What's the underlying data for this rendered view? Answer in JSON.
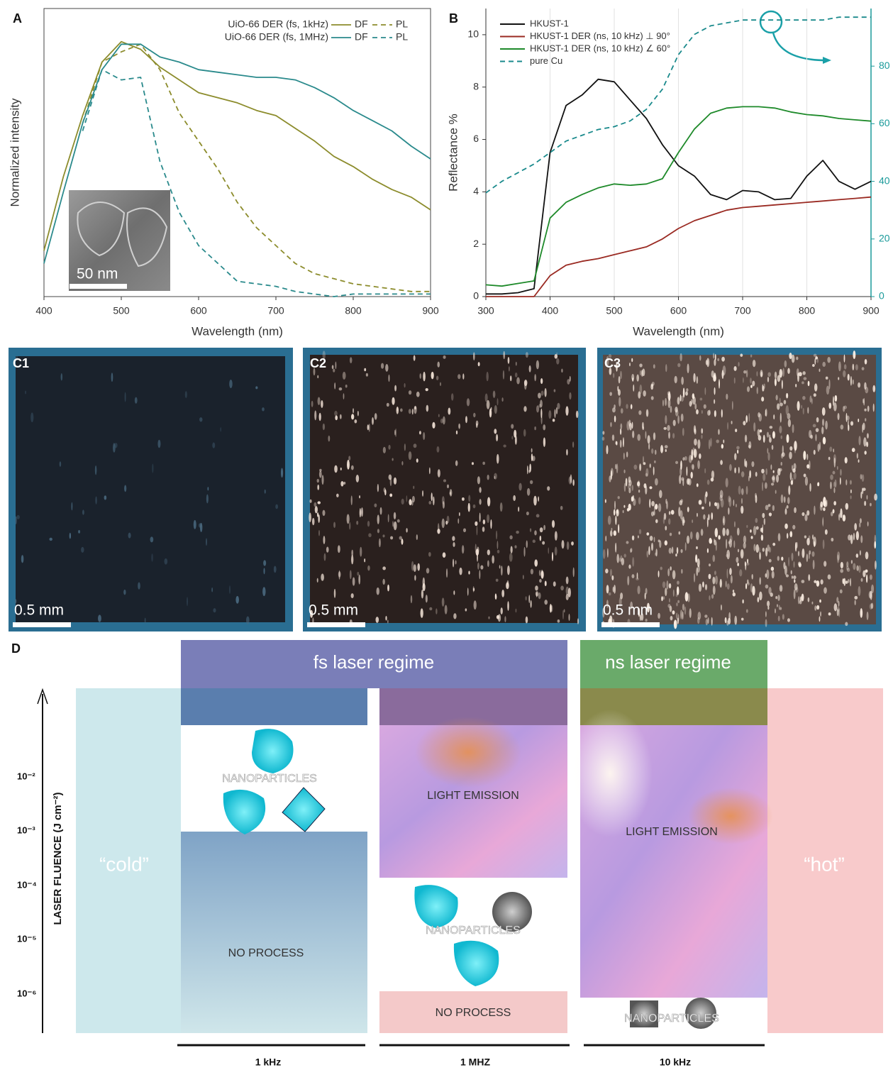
{
  "chart_data": [
    {
      "type": "line",
      "panel": "A",
      "xlabel": "Wavelength (nm)",
      "ylabel": "Normalized intensity",
      "x": [
        400,
        425,
        450,
        475,
        500,
        525,
        550,
        575,
        600,
        625,
        650,
        675,
        700,
        725,
        750,
        775,
        800,
        825,
        850,
        875,
        900
      ],
      "xlim": [
        400,
        900
      ],
      "xticks": [
        400,
        500,
        600,
        700,
        800,
        900
      ],
      "ylim": [
        0,
        1.13
      ],
      "series_groups": [
        {
          "name": "UiO-66 DER (fs, 1kHz)",
          "series": [
            {
              "name": "DF",
              "color": "#8c8c2c",
              "dashed": false,
              "values": [
                0.18,
                0.47,
                0.71,
                0.92,
                1.0,
                0.97,
                0.9,
                0.85,
                0.8,
                0.78,
                0.76,
                0.73,
                0.71,
                0.66,
                0.61,
                0.55,
                0.51,
                0.46,
                0.42,
                0.39,
                0.34
              ]
            },
            {
              "name": "PL",
              "color": "#8c8c2c",
              "dashed": true,
              "values": [
                null,
                null,
                0.68,
                0.92,
                0.96,
                0.99,
                0.89,
                0.72,
                0.61,
                0.5,
                0.37,
                0.27,
                0.2,
                0.13,
                0.09,
                0.07,
                0.05,
                0.04,
                0.03,
                0.02,
                0.02
              ]
            }
          ]
        },
        {
          "name": "UiO-66 DER (fs, 1MHz)",
          "series": [
            {
              "name": "DF",
              "color": "#2a8a8c",
              "dashed": false,
              "values": [
                0.13,
                0.41,
                0.68,
                0.89,
                0.99,
                0.99,
                0.94,
                0.92,
                0.89,
                0.88,
                0.87,
                0.86,
                0.86,
                0.85,
                0.82,
                0.78,
                0.73,
                0.69,
                0.65,
                0.59,
                0.54
              ]
            },
            {
              "name": "PL",
              "color": "#2a8a8c",
              "dashed": true,
              "values": [
                null,
                null,
                0.65,
                0.89,
                0.85,
                0.86,
                0.53,
                0.33,
                0.2,
                0.13,
                0.06,
                0.05,
                0.04,
                0.02,
                0.01,
                0,
                0.01,
                0.01,
                0.01,
                0.01,
                0.01
              ]
            }
          ]
        }
      ],
      "inset": {
        "scale_bar": "50 nm"
      }
    },
    {
      "type": "line",
      "panel": "B",
      "xlabel": "Wavelength (nm)",
      "ylabel": "Reflectance %",
      "x": [
        300,
        325,
        350,
        375,
        400,
        425,
        450,
        475,
        500,
        525,
        550,
        575,
        600,
        625,
        650,
        675,
        700,
        725,
        750,
        775,
        800,
        825,
        850,
        875,
        900
      ],
      "xlim": [
        300,
        900
      ],
      "xticks": [
        300,
        400,
        500,
        600,
        700,
        800,
        900
      ],
      "grid": true,
      "ylim": [
        0,
        11
      ],
      "yticks": [
        0,
        2,
        4,
        6,
        8,
        10
      ],
      "y2lim": [
        0,
        100
      ],
      "y2ticks": [
        0,
        20,
        40,
        60,
        80
      ],
      "y2color": "#1a9a9a",
      "series": [
        {
          "name": "HKUST-1",
          "color": "#111111",
          "dashed": false,
          "values": [
            0.1,
            0.1,
            0.15,
            0.3,
            5.5,
            7.3,
            7.7,
            8.3,
            8.2,
            7.5,
            6.8,
            5.8,
            5.0,
            4.6,
            3.9,
            3.7,
            4.05,
            4.0,
            3.7,
            3.75,
            4.6,
            5.2,
            4.4,
            4.1,
            4.4
          ]
        },
        {
          "name": "HKUST-1 DER (ns, 10 kHz) ⊥ 90°",
          "color": "#9a2a22",
          "dashed": false,
          "values": [
            0,
            0,
            0,
            0,
            0.8,
            1.2,
            1.35,
            1.45,
            1.6,
            1.75,
            1.9,
            2.2,
            2.6,
            2.9,
            3.1,
            3.3,
            3.4,
            3.45,
            3.5,
            3.55,
            3.6,
            3.65,
            3.7,
            3.75,
            3.8
          ]
        },
        {
          "name": "HKUST-1 DER (ns, 10 kHz) ∠ 60°",
          "color": "#1e8a2a",
          "dashed": false,
          "values": [
            0.45,
            0.4,
            0.5,
            0.6,
            3.0,
            3.6,
            3.9,
            4.15,
            4.3,
            4.25,
            4.3,
            4.5,
            5.5,
            6.4,
            7.0,
            7.2,
            7.25,
            7.25,
            7.2,
            7.05,
            6.95,
            6.9,
            6.8,
            6.75,
            6.7
          ]
        },
        {
          "name": "pure Cu",
          "color": "#1a8a8c",
          "dashed": true,
          "axis": "y2",
          "values": [
            36,
            40,
            43,
            46,
            50,
            54,
            56,
            58,
            59,
            61,
            65,
            72,
            84,
            91,
            94,
            95,
            96,
            96,
            96,
            96,
            96,
            96,
            97,
            97,
            97
          ]
        }
      ]
    }
  ],
  "photos": [
    {
      "label": "C1",
      "scale_bar": "0.5 mm"
    },
    {
      "label": "C2",
      "scale_bar": "0.5 mm"
    },
    {
      "label": "C3",
      "scale_bar": "0.5 mm"
    }
  ],
  "diagram": {
    "label": "D",
    "regimes": [
      "fs laser regime",
      "ns laser regime"
    ],
    "cold": "“cold”",
    "hot": "“hot”",
    "fluence_axis": {
      "title": "LASER FLUENCE (J cm⁻²)",
      "ticks": [
        "10⁻²",
        "10⁻³",
        "10⁻⁴",
        "10⁻⁵",
        "10⁻⁶"
      ]
    },
    "columns": [
      {
        "frequency": "1 kHz",
        "zones": [
          "NANOPARTICLES",
          "NO PROCESS"
        ]
      },
      {
        "frequency": "1 MHZ",
        "zones": [
          "LIGHT EMISSION",
          "NANOPARTICLES",
          "NO PROCESS"
        ]
      },
      {
        "frequency": "10 kHz",
        "zones": [
          "LIGHT EMISSION",
          "NANOPARTICLES"
        ]
      }
    ]
  }
}
